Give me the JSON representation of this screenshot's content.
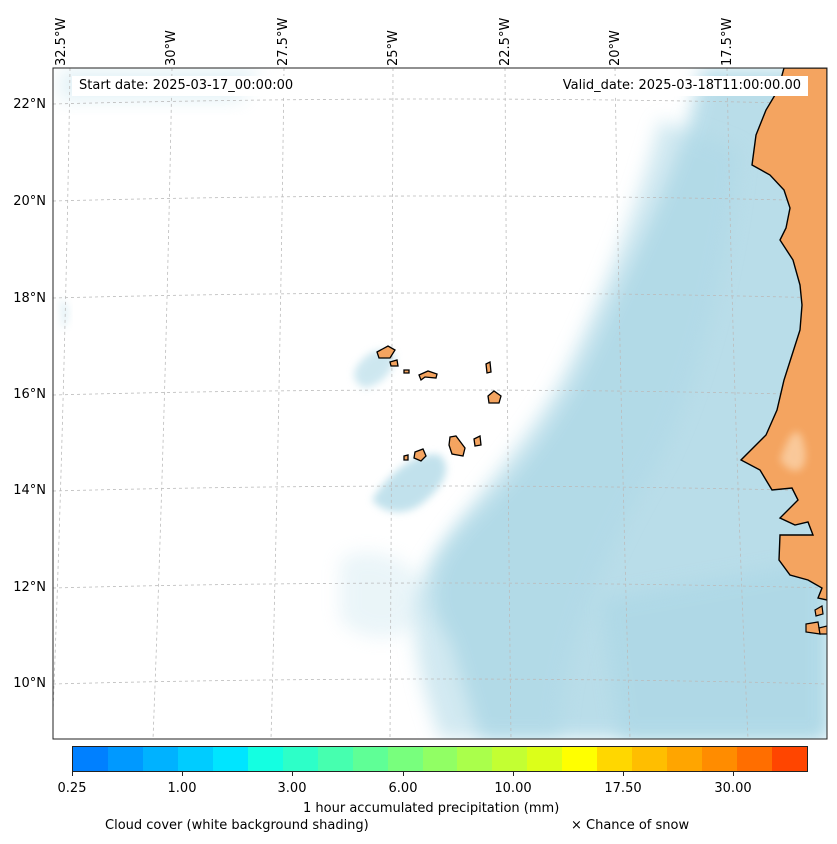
{
  "map": {
    "start_label": "Start date: 2025-03-17_00:00:00",
    "valid_label": "Valid_date: 2025-03-18T11:00:00.00",
    "lon_labels": [
      "32.5°W",
      "30°W",
      "27.5°W",
      "25°W",
      "22.5°W",
      "20°W",
      "17.5°W"
    ],
    "lat_labels": [
      "22°N",
      "20°N",
      "18°N",
      "16°N",
      "14°N",
      "12°N",
      "10°N"
    ],
    "colors": {
      "land": "#f4a460",
      "cloud": "#add8e6",
      "ocean": "#ffffff",
      "coastline": "#000000",
      "gridline": "#bbbbbb"
    }
  },
  "colorbar": {
    "title": "1 hour accumulated precipitation (mm)",
    "tick_labels": [
      "0.25",
      "1.00",
      "3.00",
      "6.00",
      "10.00",
      "17.50",
      "30.00"
    ],
    "colors": [
      "#0080ff",
      "#0099ff",
      "#00b2ff",
      "#00ccff",
      "#00e5ff",
      "#14ffe1",
      "#2dffc8",
      "#46ffaf",
      "#5fff96",
      "#78ff7d",
      "#91ff64",
      "#aaff4b",
      "#c3ff32",
      "#dcff19",
      "#ffff00",
      "#ffd700",
      "#ffbe00",
      "#ffa500",
      "#ff8c00",
      "#ff6e00",
      "#ff4500"
    ]
  },
  "legend": {
    "cloud_note": "Cloud cover (white background shading)",
    "snow_note": "× Chance of snow"
  }
}
